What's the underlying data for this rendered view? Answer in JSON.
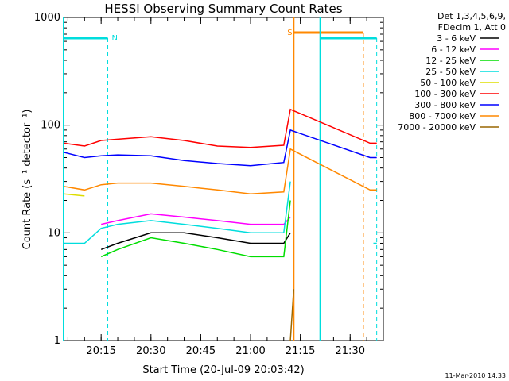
{
  "chart_data": {
    "type": "line",
    "title": "HESSI Observing Summary Count Rates",
    "xlabel": "Start Time (20-Jul-09 20:03:42)",
    "ylabel": "Count Rate (s⁻¹ detector⁻¹)",
    "yscale": "log",
    "ylim": [
      1,
      1000
    ],
    "xlim": [
      "20:03:42",
      "21:40:00"
    ],
    "x_tick_labels": [
      "20:15",
      "20:30",
      "20:45",
      "21:00",
      "21:15",
      "21:30"
    ],
    "y_tick_labels": [
      "1",
      "10",
      "100",
      "1000"
    ],
    "legend": {
      "placement": "outside-right",
      "header": [
        "Det 1,3,4,5,6,9,",
        "FDecim 1, Att 0"
      ]
    },
    "series": [
      {
        "name": "3 - 6 keV",
        "color": "#000000",
        "x": [
          "20:03:42",
          "20:15",
          "20:15",
          "20:20",
          "20:30",
          "20:40",
          "20:50",
          "21:00",
          "21:10",
          "21:12"
        ],
        "y": [
          null,
          null,
          7,
          8,
          10,
          10,
          9,
          8,
          8,
          10
        ]
      },
      {
        "name": "6 - 12 keV",
        "color": "#ff00ff",
        "x": [
          "20:15",
          "20:20",
          "20:30",
          "20:40",
          "20:50",
          "21:00",
          "21:10",
          "21:12"
        ],
        "y": [
          12,
          13,
          15,
          14,
          13,
          12,
          12,
          14
        ]
      },
      {
        "name": "12 - 25 keV",
        "color": "#00dd00",
        "x": [
          "20:03:42",
          "20:10",
          "20:15",
          "20:20",
          "20:30",
          "20:40",
          "20:50",
          "21:00",
          "21:10",
          "21:12"
        ],
        "y": [
          null,
          null,
          6,
          7,
          9,
          8,
          7,
          6,
          6,
          20
        ]
      },
      {
        "name": "25 - 50 keV",
        "color": "#00dddd",
        "x": [
          "20:03:42",
          "20:10",
          "20:15",
          "20:20",
          "20:30",
          "20:40",
          "20:50",
          "21:00",
          "21:10",
          "21:12",
          "21:36",
          "21:37",
          "21:38"
        ],
        "y": [
          8,
          8,
          11,
          12,
          13,
          12,
          11,
          10,
          10,
          30,
          null,
          8,
          8
        ]
      },
      {
        "name": "50 - 100 keV",
        "color": "#dddd00",
        "x": [
          "20:03:42",
          "20:10",
          "20:15"
        ],
        "y": [
          23,
          22,
          null
        ]
      },
      {
        "name": "100 - 300 keV",
        "color": "#ff0000",
        "x": [
          "20:03:42",
          "20:10",
          "20:15",
          "20:20",
          "20:30",
          "20:40",
          "20:50",
          "21:00",
          "21:10",
          "21:12",
          "21:36",
          "21:38"
        ],
        "y": [
          68,
          64,
          72,
          74,
          78,
          72,
          64,
          62,
          65,
          140,
          68,
          68
        ]
      },
      {
        "name": "300 - 800 keV",
        "color": "#0000ff",
        "x": [
          "20:03:42",
          "20:10",
          "20:15",
          "20:20",
          "20:30",
          "20:40",
          "20:50",
          "21:00",
          "21:10",
          "21:12",
          "21:36",
          "21:38"
        ],
        "y": [
          56,
          50,
          52,
          53,
          52,
          47,
          44,
          42,
          45,
          90,
          50,
          50
        ]
      },
      {
        "name": "800 - 7000 keV",
        "color": "#ff8800",
        "x": [
          "20:03:42",
          "20:10",
          "20:15",
          "20:20",
          "20:30",
          "20:40",
          "20:50",
          "21:00",
          "21:10",
          "21:12",
          "21:36",
          "21:38"
        ],
        "y": [
          27,
          25,
          28,
          29,
          29,
          27,
          25,
          23,
          24,
          60,
          25,
          25
        ]
      },
      {
        "name": "7000 - 20000 keV",
        "color": "#996600",
        "x": [
          "21:12",
          "21:13"
        ],
        "y": [
          1,
          3
        ]
      }
    ],
    "annotations": [
      {
        "label": "N",
        "color": "#00dddd"
      },
      {
        "label": "S",
        "color": "#ff8800"
      }
    ],
    "footer": "11-Mar-2010 14:33"
  }
}
